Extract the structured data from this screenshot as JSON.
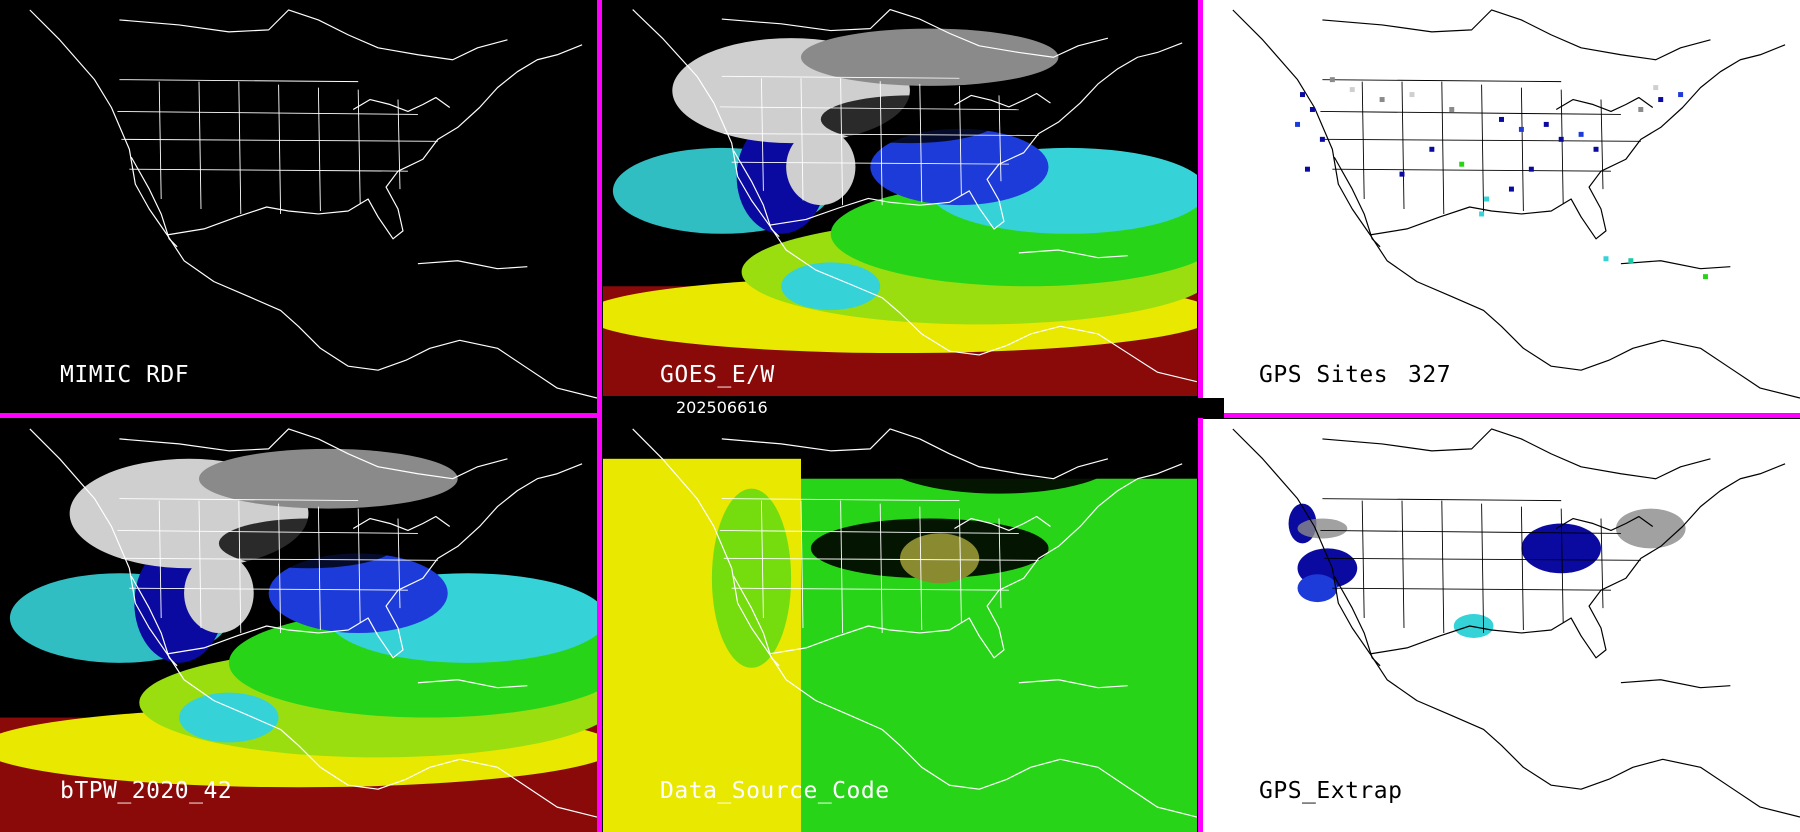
{
  "panels": [
    {
      "label": "MIMIC RDF",
      "theme": "dark"
    },
    {
      "label": "GOES_E/W",
      "theme": "dark"
    },
    {
      "label": "GPS Sites",
      "count": "327",
      "theme": "light"
    },
    {
      "label": "bTPW_2020_42",
      "theme": "dark"
    },
    {
      "label": "Data_Source_Code",
      "theme": "dark"
    },
    {
      "label": "GPS_Extrap",
      "theme": "light"
    }
  ],
  "timestamp": "202506616",
  "colors": {
    "divider": "#ff00ff",
    "outline_on_dark": "#ffffff",
    "outline_on_light": "#000000",
    "palette": [
      "#8a8a8a",
      "#cfcfcf",
      "#0a0aa0",
      "#1d3bd8",
      "#35d3d8",
      "#18c8a8",
      "#28d418",
      "#9ade10",
      "#e8e800",
      "#8a8a30",
      "#8a0a0a"
    ]
  }
}
